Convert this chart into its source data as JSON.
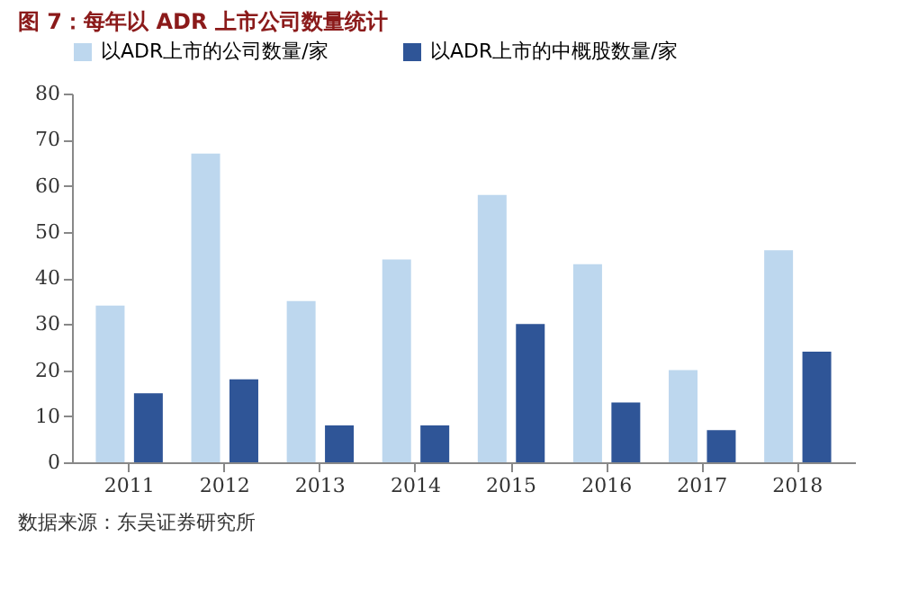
{
  "chart_data": {
    "type": "bar",
    "title": "图 7：每年以 ADR 上市公司数量统计",
    "categories": [
      "2011",
      "2012",
      "2013",
      "2014",
      "2015",
      "2016",
      "2017",
      "2018"
    ],
    "series": [
      {
        "name": "以ADR上市的公司数量/家",
        "color": "#bdd7ee",
        "values": [
          34,
          67,
          35,
          44,
          58,
          43,
          20,
          46
        ]
      },
      {
        "name": "以ADR上市的中概股数量/家",
        "color": "#2f5597",
        "values": [
          15,
          18,
          8,
          8,
          30,
          13,
          7,
          24
        ]
      }
    ],
    "ylim": [
      0,
      80
    ],
    "yticks": [
      0,
      10,
      20,
      30,
      40,
      50,
      60,
      70,
      80
    ],
    "grid": false,
    "legend": "top",
    "annotations": [
      "数据来源：东吴证券研究所"
    ]
  }
}
